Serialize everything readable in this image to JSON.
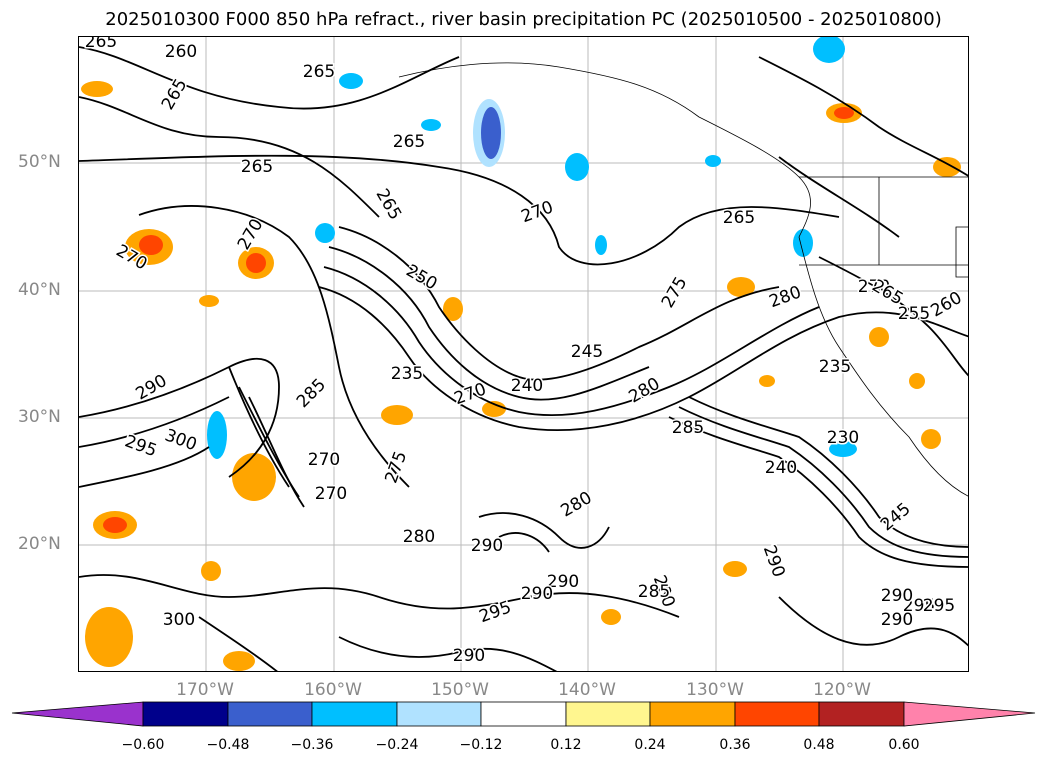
{
  "title": "2025010300 F000 850 hPa refract., river basin precipitation PC (2025010500 - 2025010800)",
  "lat_labels": [
    "50°N",
    "40°N",
    "30°N",
    "20°N"
  ],
  "lon_labels": [
    "170°W",
    "160°W",
    "150°W",
    "140°W",
    "130°W",
    "120°W"
  ],
  "contour_labels": [
    "265",
    "260",
    "265",
    "265",
    "265",
    "265",
    "265",
    "270",
    "270",
    "270",
    "265",
    "270",
    "275",
    "280",
    "265",
    "255",
    "260",
    "250",
    "245",
    "240",
    "235",
    "270",
    "290",
    "285",
    "295",
    "300",
    "270",
    "270",
    "280",
    "275",
    "280",
    "285",
    "290",
    "295",
    "280",
    "290",
    "240",
    "230",
    "235",
    "245",
    "290",
    "295",
    "285",
    "290",
    "290",
    "295",
    "300",
    "290",
    "280",
    "290"
  ],
  "colorbar": {
    "ticks": [
      "−0.60",
      "−0.48",
      "−0.36",
      "−0.24",
      "−0.12",
      "0.12",
      "0.24",
      "0.36",
      "0.48",
      "0.60"
    ],
    "colors": [
      "#9a32cd",
      "#00008b",
      "#3a5fcd",
      "#00bfff",
      "#b0e2ff",
      "#ffffff",
      "#fff68f",
      "#ffa500",
      "#ff4500",
      "#b22222",
      "#ff82ab"
    ]
  }
}
